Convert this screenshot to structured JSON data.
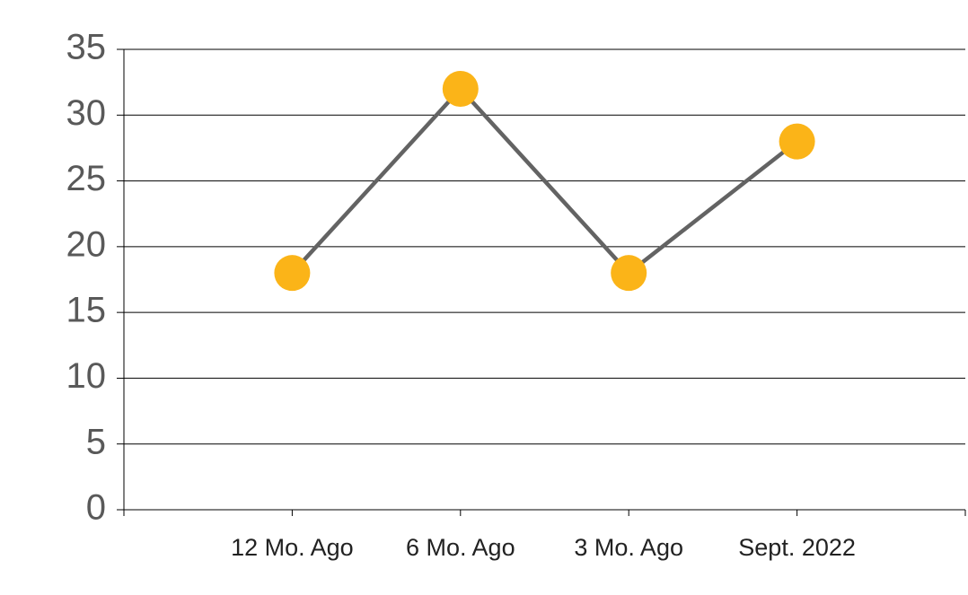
{
  "chart_data": {
    "type": "line",
    "categories": [
      "12 Mo. Ago",
      "6 Mo. Ago",
      "3 Mo. Ago",
      "Sept. 2022"
    ],
    "values": [
      18,
      32,
      18,
      28
    ],
    "color": "#636363",
    "marker_color": "#fbb418",
    "ylim": [
      0,
      35
    ],
    "yticks": [
      0,
      5,
      10,
      15,
      20,
      25,
      30,
      35
    ],
    "grid": true
  }
}
